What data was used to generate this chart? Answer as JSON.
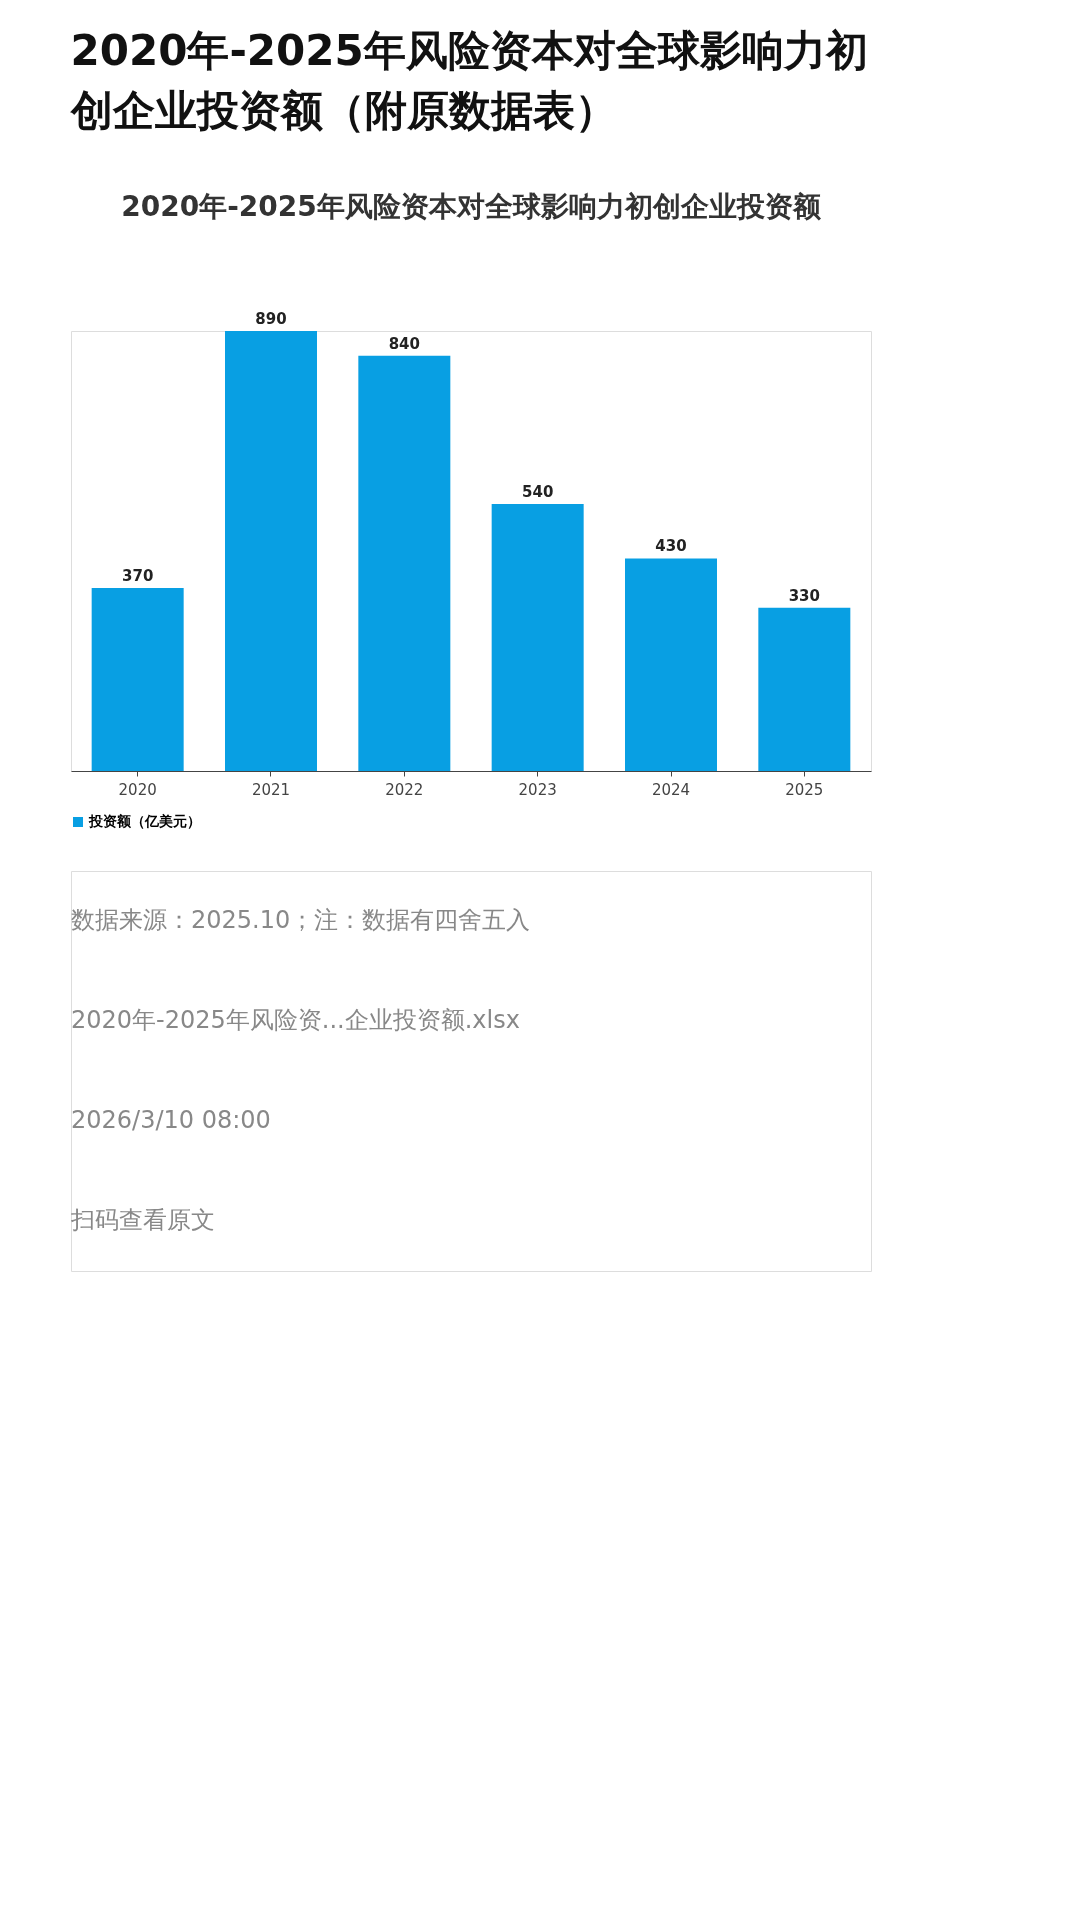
{
  "chart_data": {
    "type": "bar",
    "title": "2020年-2025年风险资本对全球影响力初创企业投资额（附原数据表）",
    "subtitle": "2020年-2025年风险资本对全球影响力初创企业投资额",
    "categories": [
      "2020",
      "2021",
      "2022",
      "2023",
      "2024",
      "2025"
    ],
    "series": [
      {
        "name": "投资额（亿美元）",
        "color": "#089fe3",
        "values": [
          370,
          890,
          840,
          540,
          430,
          330
        ]
      }
    ],
    "data_labels": true,
    "legend": "bottom",
    "annotations": [
      "数据来源：2025.10；注：数据有四舍五入",
      "2020年-2025年风险资...企业投资额.xlsx",
      "2026/3/10 08:00",
      "扫码查看原文"
    ]
  }
}
